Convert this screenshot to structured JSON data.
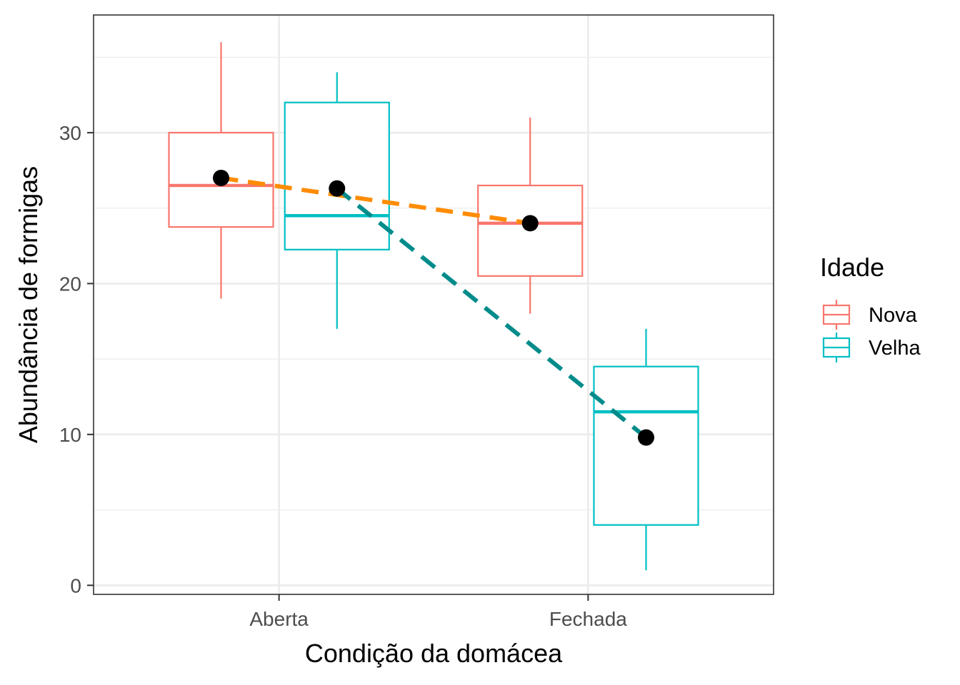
{
  "chart_data": {
    "type": "boxplot",
    "title": "",
    "xlabel": "Condição da domácea",
    "ylabel": "Abundância de formigas",
    "categories": [
      "Aberta",
      "Fechada"
    ],
    "ylim": [
      -0.6,
      37.8
    ],
    "yticks": [
      0,
      10,
      20,
      30
    ],
    "grid": true,
    "legend": {
      "title": "Idade",
      "position": "right"
    },
    "series": [
      {
        "name": "Nova",
        "color": "#F8766D",
        "boxes": [
          {
            "category": "Aberta",
            "min": 19,
            "q1": 23.75,
            "median": 26.5,
            "q3": 30,
            "max": 36
          },
          {
            "category": "Fechada",
            "min": 18,
            "q1": 20.5,
            "median": 24,
            "q3": 26.5,
            "max": 31
          }
        ],
        "means": [
          27,
          24
        ],
        "mean_line_color": "#FF8C00"
      },
      {
        "name": "Velha",
        "color": "#00BFC4",
        "boxes": [
          {
            "category": "Aberta",
            "min": 17,
            "q1": 22.25,
            "median": 24.5,
            "q3": 32,
            "max": 34
          },
          {
            "category": "Fechada",
            "min": 1,
            "q1": 4,
            "median": 11.5,
            "q3": 14.5,
            "max": 17
          }
        ],
        "means": [
          26.3,
          9.8
        ],
        "mean_line_color": "#008B8B"
      }
    ]
  }
}
